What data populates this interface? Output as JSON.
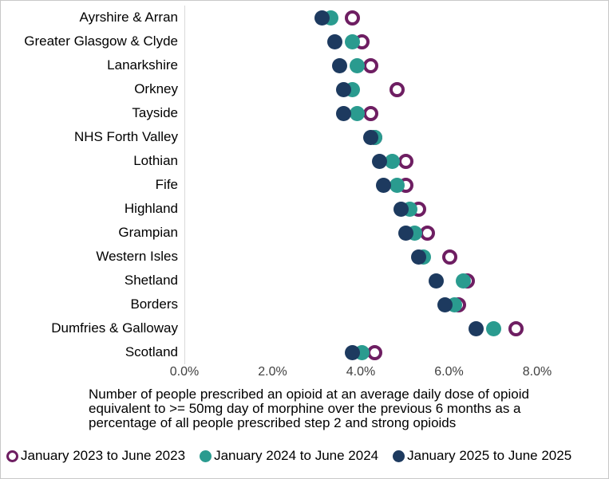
{
  "chart_data": {
    "type": "scatter",
    "subtype": "horizontal-dot-plot",
    "title": "",
    "xlabel": "",
    "ylabel": "",
    "grid": false,
    "legend_position": "bottom",
    "x_axis": {
      "min": 0,
      "max": 8,
      "tick_labels": [
        "0.0%",
        "2.0%",
        "4.0%",
        "6.0%",
        "8.0%"
      ]
    },
    "categories": [
      "Ayrshire & Arran",
      "Greater Glasgow & Clyde",
      "Lanarkshire",
      "Orkney",
      "Tayside",
      "NHS Forth Valley",
      "Lothian",
      "Fife",
      "Highland",
      "Grampian",
      "Western Isles",
      "Shetland",
      "Borders",
      "Dumfries & Galloway",
      "Scotland"
    ],
    "series": [
      {
        "name": "January 2023 to June 2023",
        "marker": "open",
        "color": "#6e1e62",
        "values": [
          3.8,
          4.0,
          4.2,
          4.8,
          4.2,
          4.3,
          5.0,
          5.0,
          5.3,
          5.5,
          6.0,
          6.4,
          6.2,
          7.5,
          4.3
        ]
      },
      {
        "name": "January 2024 to June 2024",
        "marker": "filled",
        "color": "#2a9b8f",
        "values": [
          3.3,
          3.8,
          3.9,
          3.8,
          3.9,
          4.3,
          4.7,
          4.8,
          5.1,
          5.2,
          5.4,
          6.3,
          6.1,
          7.0,
          4.0
        ]
      },
      {
        "name": "January 2025 to June 2025",
        "marker": "filled",
        "color": "#1d3a5f",
        "values": [
          3.1,
          3.4,
          3.5,
          3.6,
          3.6,
          4.2,
          4.4,
          4.5,
          4.9,
          5.0,
          5.3,
          5.7,
          5.9,
          6.6,
          3.8
        ]
      }
    ],
    "caption": "Number of people prescribed an opioid at an average daily dose of opioid equivalent to >= 50mg day of morphine over the previous 6 months as a percentage of all people prescribed step 2 and strong opioids"
  },
  "colors": {
    "axis_line": "#d9d9d9",
    "tick_text": "#404040",
    "frame_border": "#c8c8c8"
  }
}
